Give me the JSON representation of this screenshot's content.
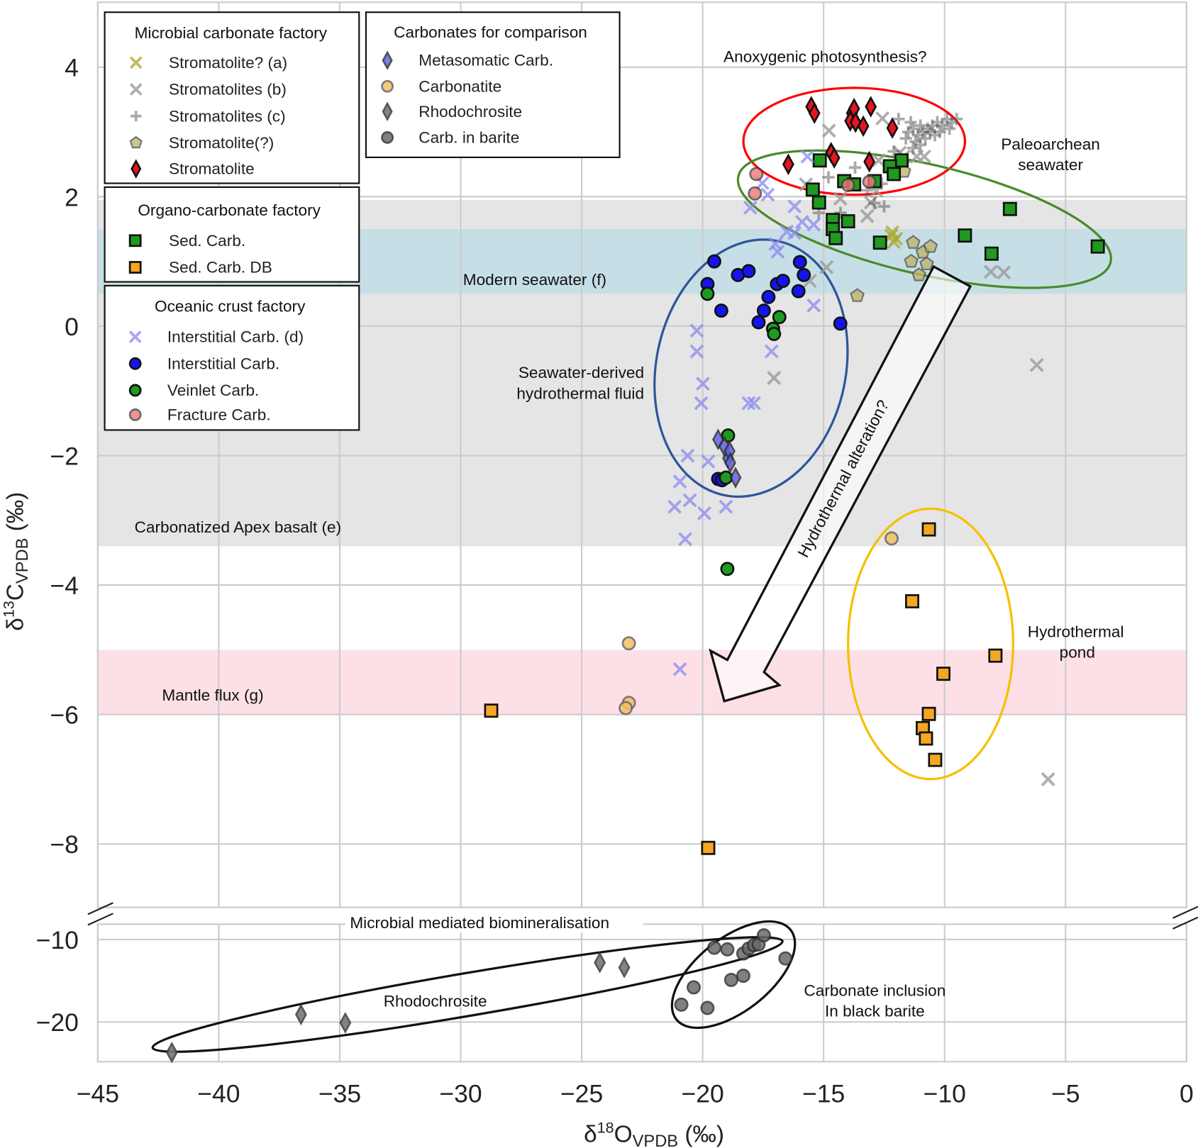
{
  "chart_data": {
    "type": "scatter",
    "xlabel": {
      "delta": "δ",
      "sup": "18",
      "base": "O",
      "sub": "VPDB",
      "unit": " (‰)"
    },
    "ylabel": {
      "delta": "δ",
      "sup": "13",
      "base": "C",
      "sub": "VPDB",
      "unit": " (‰)"
    },
    "xlim": [
      -45,
      0
    ],
    "ylim_upper": [
      -9,
      5
    ],
    "ylim_lower": [
      -25,
      -8
    ],
    "broken_y_axis": true,
    "grid": true,
    "x_ticks": [
      "−45",
      "−40",
      "−35",
      "−30",
      "−25",
      "−20",
      "−15",
      "−10",
      "−5",
      "0"
    ],
    "x_tick_values": [
      -45,
      -40,
      -35,
      -30,
      -25,
      -20,
      -15,
      -10,
      -5,
      0
    ],
    "y_ticks_upper": [
      {
        "v": 4,
        "t": "4"
      },
      {
        "v": 2,
        "t": "2"
      },
      {
        "v": 0,
        "t": "0"
      },
      {
        "v": -2,
        "t": "−2"
      },
      {
        "v": -4,
        "t": "−4"
      },
      {
        "v": -6,
        "t": "−6"
      },
      {
        "v": -8,
        "t": "−8"
      }
    ],
    "y_ticks_lower": [
      {
        "v": -10,
        "t": "−10"
      },
      {
        "v": -20,
        "t": "−20"
      }
    ],
    "bands": [
      {
        "label": "Carbonatized Apex basalt (e)",
        "y": [
          -3.4,
          1.95
        ],
        "color": "#e5e5e5"
      },
      {
        "label": "Modern seawater (f)",
        "y": [
          0.5,
          1.5
        ],
        "color": "#c6dfe6"
      },
      {
        "label": "Mantle flux (g)",
        "y": [
          -6,
          -5
        ],
        "color": "#fde0e6"
      }
    ],
    "legend_groups": [
      {
        "title": "Microbial carbonate factory",
        "series": [
          0,
          1,
          2,
          3,
          4
        ]
      },
      {
        "title": "Organo-carbonate factory",
        "series": [
          5,
          6
        ]
      },
      {
        "title": "Oceanic crust factory",
        "series": [
          7,
          8,
          9,
          10
        ]
      },
      {
        "title": "Carbonates for comparison",
        "series": [
          11,
          12,
          13,
          14
        ]
      }
    ],
    "series": [
      {
        "name": "Stromatolite? (a)",
        "marker": "x",
        "color": "#a9a82e",
        "edge": "none",
        "alpha": 0.75,
        "points": [
          [
            -12.16,
            1.45
          ],
          [
            -12.1,
            1.3
          ],
          [
            -12.2,
            1.4
          ],
          [
            -12.0,
            1.35
          ]
        ]
      },
      {
        "name": "Stromatolites (b)",
        "marker": "x",
        "color": "#9a9a9a",
        "edge": "none",
        "alpha": 0.8,
        "points": [
          [
            -14.78,
            3.02
          ],
          [
            -12.57,
            3.21
          ],
          [
            -11.15,
            2.62
          ],
          [
            -10.84,
            2.62
          ],
          [
            -12.73,
            2.56
          ],
          [
            -11.69,
            2.62
          ],
          [
            -12.82,
            2.09
          ],
          [
            -13.2,
            1.7
          ],
          [
            -11.85,
            2.68
          ],
          [
            -14.88,
            0.91
          ],
          [
            -15.57,
            0.7
          ],
          [
            -8.09,
            0.84
          ],
          [
            -7.55,
            0.83
          ],
          [
            -6.19,
            -0.6
          ],
          [
            -5.72,
            -7.0
          ],
          [
            -17.05,
            -0.8
          ],
          [
            -15.73,
            2.19
          ],
          [
            -14.31,
            1.97
          ],
          [
            -14.62,
            1.5
          ],
          [
            -13.05,
            1.91
          ]
        ]
      },
      {
        "name": "Stromatolites (c)",
        "marker": "plus",
        "color": "#555555",
        "edge": "none",
        "alpha": 0.5,
        "points": [
          [
            -11.5,
            3.0
          ],
          [
            -11.3,
            3.05
          ],
          [
            -11.1,
            2.95
          ],
          [
            -11.0,
            3.1
          ],
          [
            -10.9,
            3.0
          ],
          [
            -10.8,
            2.9
          ],
          [
            -11.2,
            2.85
          ],
          [
            -10.7,
            3.05
          ],
          [
            -10.5,
            3.1
          ],
          [
            -10.3,
            3.15
          ],
          [
            -10.1,
            3.1
          ],
          [
            -9.9,
            3.2
          ],
          [
            -9.7,
            3.15
          ],
          [
            -9.5,
            3.2
          ],
          [
            -10.6,
            3.0
          ],
          [
            -11.4,
            3.15
          ],
          [
            -11.6,
            2.9
          ],
          [
            -11.0,
            2.8
          ],
          [
            -10.4,
            2.95
          ],
          [
            -11.9,
            3.2
          ],
          [
            -12.1,
            2.7
          ],
          [
            -12.3,
            2.4
          ],
          [
            -12.6,
            2.2
          ],
          [
            -12.0,
            2.45
          ],
          [
            -11.7,
            2.55
          ],
          [
            -13.2,
            2.1
          ],
          [
            -12.9,
            1.9
          ],
          [
            -14.3,
            1.75
          ],
          [
            -14.8,
            2.3
          ],
          [
            -12.5,
            1.85
          ],
          [
            -15.2,
            1.75
          ],
          [
            -13.7,
            2.45
          ],
          [
            -11.3,
            2.75
          ],
          [
            -10.2,
            3.0
          ],
          [
            -9.8,
            3.05
          ]
        ]
      },
      {
        "name": "Stromatolite(?)",
        "marker": "pentagon",
        "color": "#bdb76b",
        "edge": "#555555",
        "alpha": 0.8,
        "points": [
          [
            -13.61,
            0.47
          ],
          [
            -11.3,
            1.29
          ],
          [
            -10.9,
            1.14
          ],
          [
            -10.58,
            1.23
          ],
          [
            -11.38,
            1.0
          ],
          [
            -10.74,
            0.96
          ],
          [
            -11.06,
            0.79
          ],
          [
            -11.68,
            2.39
          ]
        ]
      },
      {
        "name": "Stromatolite",
        "marker": "diamond",
        "color": "#e8141e",
        "edge": "#111111",
        "alpha": 1,
        "points": [
          [
            -15.51,
            3.39
          ],
          [
            -15.38,
            3.29
          ],
          [
            -13.83,
            3.29
          ],
          [
            -13.74,
            3.36
          ],
          [
            -13.9,
            3.17
          ],
          [
            -13.68,
            3.15
          ],
          [
            -13.36,
            3.09
          ],
          [
            -13.05,
            3.39
          ],
          [
            -12.16,
            3.06
          ],
          [
            -16.46,
            2.5
          ],
          [
            -14.69,
            2.68
          ],
          [
            -14.56,
            2.6
          ],
          [
            -13.11,
            2.54
          ]
        ]
      },
      {
        "name": "Sed. Carb.",
        "marker": "square",
        "color": "#1f9a1f",
        "edge": "#111111",
        "alpha": 1,
        "points": [
          [
            -15.16,
            2.56
          ],
          [
            -15.45,
            2.11
          ],
          [
            -15.19,
            1.91
          ],
          [
            -11.78,
            2.56
          ],
          [
            -12.26,
            2.47
          ],
          [
            -12.1,
            2.35
          ],
          [
            -14.15,
            2.24
          ],
          [
            -13.74,
            2.19
          ],
          [
            -12.89,
            2.24
          ],
          [
            -14.62,
            1.64
          ],
          [
            -13.99,
            1.62
          ],
          [
            -14.62,
            1.5
          ],
          [
            -14.5,
            1.36
          ],
          [
            -12.67,
            1.29
          ],
          [
            -9.16,
            1.4
          ],
          [
            -8.06,
            1.12
          ],
          [
            -7.3,
            1.81
          ],
          [
            -3.67,
            1.23
          ]
        ]
      },
      {
        "name": "Sed. Carb. DB",
        "marker": "square",
        "color": "#f5a623",
        "edge": "#111111",
        "alpha": 1,
        "points": [
          [
            -10.65,
            -3.14
          ],
          [
            -11.34,
            -4.25
          ],
          [
            -7.9,
            -5.09
          ],
          [
            -10.05,
            -5.37
          ],
          [
            -10.65,
            -5.99
          ],
          [
            -10.9,
            -6.21
          ],
          [
            -10.77,
            -6.37
          ],
          [
            -10.39,
            -6.7
          ],
          [
            -28.74,
            -5.94
          ],
          [
            -19.77,
            -8.06
          ]
        ]
      },
      {
        "name": "Interstitial Carb. (d)",
        "marker": "x",
        "color": "#8a8af0",
        "edge": "none",
        "alpha": 0.75,
        "points": [
          [
            -15.67,
            2.62
          ],
          [
            -17.53,
            2.21
          ],
          [
            -18.03,
            1.83
          ],
          [
            -17.31,
            2.03
          ],
          [
            -16.2,
            1.85
          ],
          [
            -15.89,
            1.61
          ],
          [
            -16.2,
            1.44
          ],
          [
            -16.9,
            1.15
          ],
          [
            -16.99,
            1.27
          ],
          [
            -15.41,
            0.32
          ],
          [
            -20.24,
            -0.07
          ],
          [
            -20.24,
            -0.39
          ],
          [
            -19.99,
            -0.89
          ],
          [
            -20.06,
            -1.19
          ],
          [
            -18.1,
            -1.19
          ],
          [
            -17.88,
            -1.19
          ],
          [
            -17.15,
            -0.39
          ],
          [
            -20.62,
            -2.0
          ],
          [
            -19.77,
            -2.09
          ],
          [
            -20.94,
            -2.4
          ],
          [
            -20.53,
            -2.69
          ],
          [
            -21.16,
            -2.79
          ],
          [
            -19.93,
            -2.89
          ],
          [
            -19.04,
            -2.79
          ],
          [
            -20.72,
            -3.29
          ],
          [
            -20.94,
            -5.3
          ],
          [
            -16.52,
            1.46
          ],
          [
            -15.41,
            1.57
          ]
        ]
      },
      {
        "name": "Interstitial Carb.",
        "marker": "circle",
        "color": "#1414f0",
        "edge": "#111111",
        "alpha": 1,
        "points": [
          [
            -19.52,
            1.0
          ],
          [
            -19.8,
            0.65
          ],
          [
            -18.54,
            0.79
          ],
          [
            -18.1,
            0.85
          ],
          [
            -19.23,
            0.24
          ],
          [
            -17.28,
            0.45
          ],
          [
            -17.69,
            0.06
          ],
          [
            -17.47,
            0.24
          ],
          [
            -16.93,
            0.65
          ],
          [
            -16.68,
            0.7
          ],
          [
            -15.98,
            0.99
          ],
          [
            -15.82,
            0.79
          ],
          [
            -16.04,
            0.54
          ],
          [
            -14.31,
            0.04
          ],
          [
            -19.36,
            -2.36
          ],
          [
            -19.2,
            -2.38
          ]
        ]
      },
      {
        "name": "Veinlet Carb.",
        "marker": "circle",
        "color": "#1e9a1e",
        "edge": "#111111",
        "alpha": 1,
        "points": [
          [
            -19.8,
            0.5
          ],
          [
            -16.83,
            0.14
          ],
          [
            -17.09,
            -0.04
          ],
          [
            -17.05,
            -0.12
          ],
          [
            -18.95,
            -1.69
          ],
          [
            -19.04,
            -2.34
          ],
          [
            -18.98,
            -3.75
          ]
        ]
      },
      {
        "name": "Fracture Carb.",
        "marker": "circle",
        "color": "#f07878",
        "edge": "#444444",
        "alpha": 0.8,
        "points": [
          [
            -17.78,
            2.35
          ],
          [
            -17.84,
            2.05
          ],
          [
            -13.99,
            2.18
          ],
          [
            -13.11,
            2.23
          ]
        ]
      },
      {
        "name": "Metasomatic Carb.",
        "marker": "diamond",
        "color": "#6464ee",
        "edge": "#333333",
        "alpha": 0.85,
        "points": [
          [
            -19.36,
            -1.75
          ],
          [
            -19.1,
            -1.86
          ],
          [
            -18.95,
            -2.04
          ],
          [
            -18.89,
            -1.93
          ],
          [
            -18.86,
            -2.11
          ],
          [
            -18.64,
            -2.34
          ]
        ]
      },
      {
        "name": "Carbonatite",
        "marker": "circle",
        "color": "#f5c060",
        "edge": "#666666",
        "alpha": 0.85,
        "points": [
          [
            -12.19,
            -3.28
          ],
          [
            -23.05,
            -4.9
          ],
          [
            -23.05,
            -5.82
          ],
          [
            -23.18,
            -5.9
          ]
        ]
      },
      {
        "name": "Rhodochrosite",
        "marker": "diamond",
        "color": "#777777",
        "edge": "#444444",
        "alpha": 0.9,
        "points": [
          [
            -41.94,
            -23.7
          ],
          [
            -36.6,
            -19.1
          ],
          [
            -34.77,
            -20.1
          ],
          [
            -24.25,
            -12.8
          ],
          [
            -23.24,
            -13.4
          ]
        ]
      },
      {
        "name": "Carb. in barite",
        "marker": "circle",
        "color": "#6a6a6a",
        "edge": "#333333",
        "alpha": 0.85,
        "points": [
          [
            -19.52,
            -11.0
          ],
          [
            -18.98,
            -11.2
          ],
          [
            -18.32,
            -11.7
          ],
          [
            -18.1,
            -11.1
          ],
          [
            -17.88,
            -10.7
          ],
          [
            -17.69,
            -10.6
          ],
          [
            -17.47,
            -9.5
          ],
          [
            -16.58,
            -12.3
          ],
          [
            -18.82,
            -14.9
          ],
          [
            -18.32,
            -14.4
          ],
          [
            -20.37,
            -15.8
          ],
          [
            -20.88,
            -17.9
          ],
          [
            -19.8,
            -18.3
          ]
        ]
      }
    ],
    "annotations": {
      "anoxygenic": "Anoxygenic photosynthesis?",
      "paleoarchean": [
        "Paleoarchean",
        "seawater"
      ],
      "seawater_derived": [
        "Seawater-derived",
        "hydrothermal fluid"
      ],
      "hydrothermal_alteration": "Hydrothermal alteration?",
      "hydrothermal_pond": [
        "Hydrothermal",
        "pond"
      ],
      "microbial_mediated": "Microbial mediated biomineralisation",
      "rhodochrosite": "Rhodochrosite",
      "carbonate_inclusion": [
        "Carbonate inclusion",
        "In black barite"
      ]
    },
    "annotation_colors": {
      "anoxygenic": "#ff0000",
      "paleoarchean": "#4a8a2a",
      "seawater_derived": "#2b7bc4",
      "hydrothermal_pond": "#e0a800",
      "seawater_ellipse": "#2f5597",
      "pond_ellipse": "#f5c000"
    }
  }
}
